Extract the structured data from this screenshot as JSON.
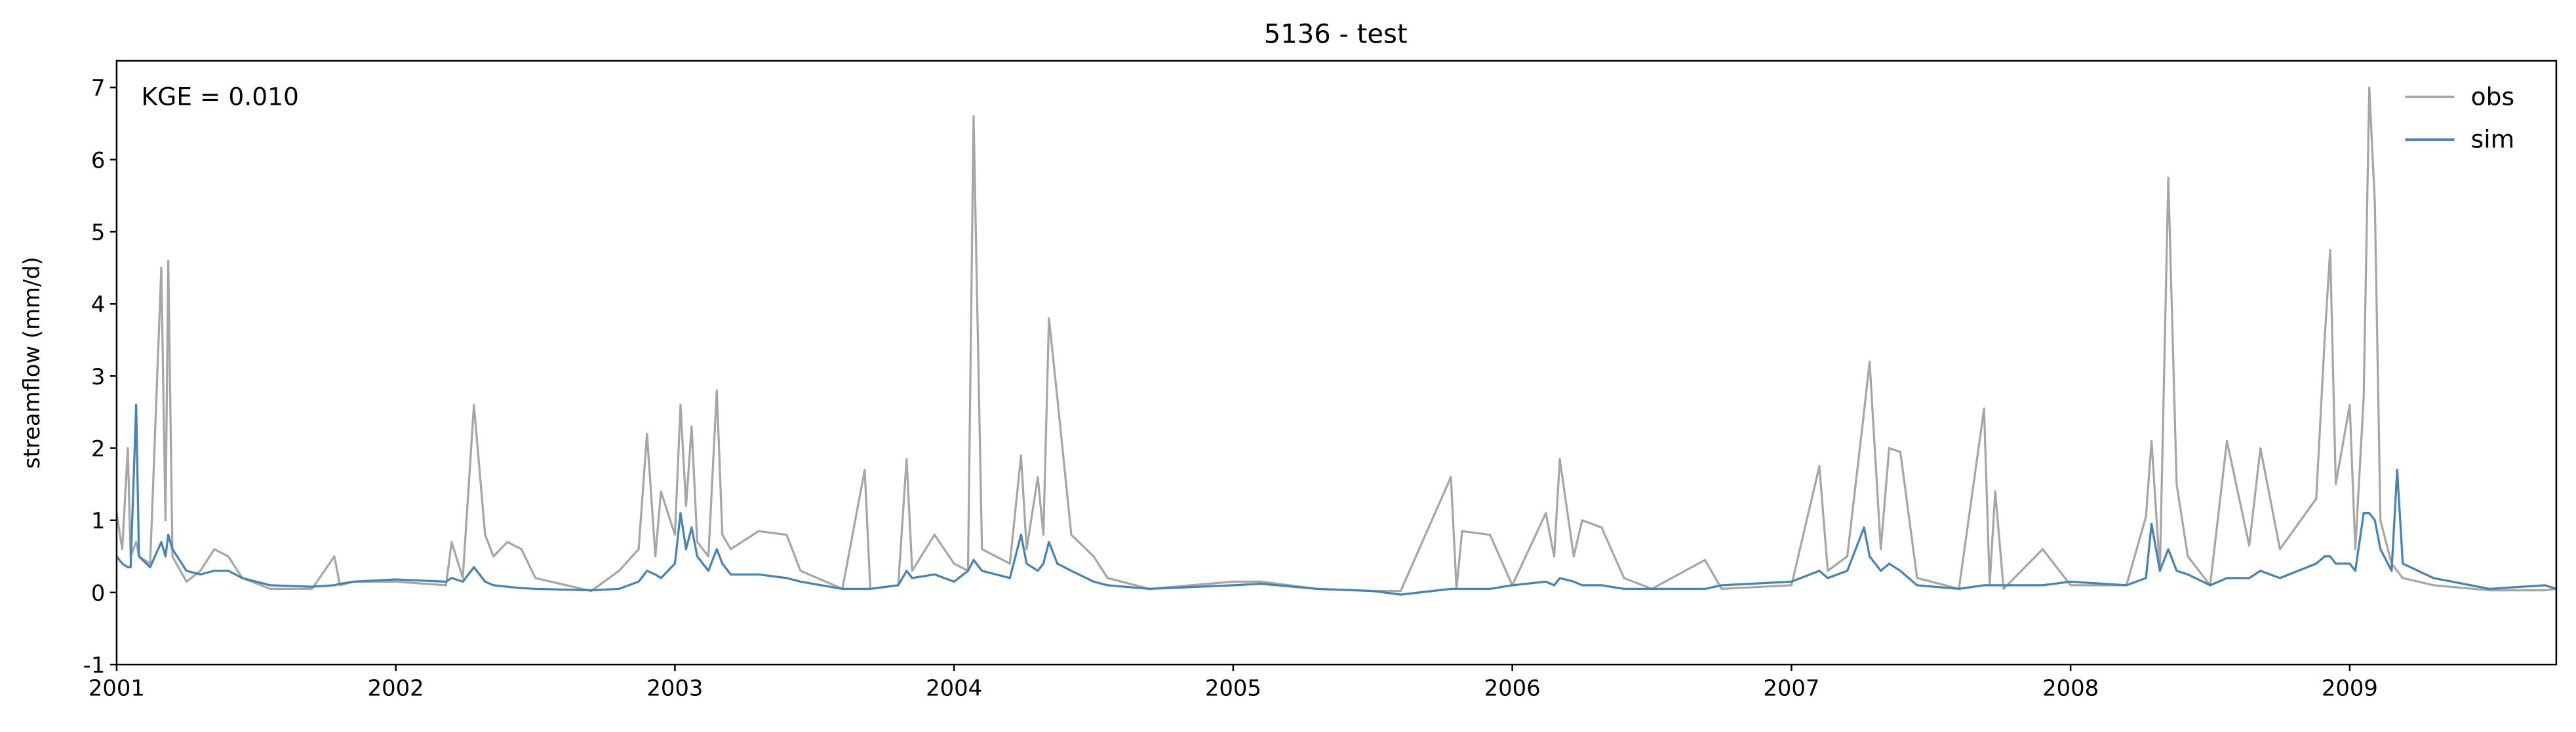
{
  "chart_data": {
    "type": "line",
    "title": "5136 - test",
    "ylabel": "streamflow (mm/d)",
    "annotation": "KGE = 0.010",
    "legend": "upper right",
    "xlim": [
      2001,
      2009.74
    ],
    "xticks": [
      2001,
      2002,
      2003,
      2004,
      2005,
      2006,
      2007,
      2008,
      2009
    ],
    "ylim": [
      -1,
      7.37
    ],
    "yticks": [
      -1,
      0,
      1,
      2,
      3,
      4,
      5,
      6,
      7
    ],
    "x": [
      2001.0,
      2001.02,
      2001.04,
      2001.05,
      2001.07,
      2001.08,
      2001.12,
      2001.16,
      2001.175,
      2001.185,
      2001.2,
      2001.25,
      2001.3,
      2001.35,
      2001.4,
      2001.45,
      2001.55,
      2001.7,
      2001.78,
      2001.8,
      2001.85,
      2002.0,
      2002.18,
      2002.2,
      2002.24,
      2002.28,
      2002.32,
      2002.35,
      2002.4,
      2002.45,
      2002.5,
      2002.7,
      2002.8,
      2002.87,
      2002.9,
      2002.93,
      2002.95,
      2003.0,
      2003.02,
      2003.04,
      2003.06,
      2003.08,
      2003.12,
      2003.15,
      2003.17,
      2003.2,
      2003.3,
      2003.4,
      2003.45,
      2003.6,
      2003.68,
      2003.7,
      2003.8,
      2003.83,
      2003.85,
      2003.93,
      2004.0,
      2004.05,
      2004.07,
      2004.1,
      2004.2,
      2004.24,
      2004.26,
      2004.3,
      2004.32,
      2004.34,
      2004.37,
      2004.42,
      2004.5,
      2004.55,
      2004.7,
      2005.0,
      2005.1,
      2005.3,
      2005.5,
      2005.6,
      2005.78,
      2005.8,
      2005.82,
      2005.92,
      2006.0,
      2006.12,
      2006.15,
      2006.17,
      2006.22,
      2006.25,
      2006.32,
      2006.4,
      2006.5,
      2006.69,
      2006.75,
      2007.0,
      2007.1,
      2007.13,
      2007.2,
      2007.26,
      2007.28,
      2007.32,
      2007.35,
      2007.39,
      2007.45,
      2007.6,
      2007.69,
      2007.71,
      2007.73,
      2007.76,
      2007.9,
      2008.0,
      2008.2,
      2008.27,
      2008.29,
      2008.32,
      2008.35,
      2008.38,
      2008.42,
      2008.5,
      2008.56,
      2008.64,
      2008.68,
      2008.75,
      2008.88,
      2008.91,
      2008.93,
      2008.95,
      2009.0,
      2009.02,
      2009.05,
      2009.07,
      2009.09,
      2009.11,
      2009.15,
      2009.17,
      2009.19,
      2009.3,
      2009.5,
      2009.7,
      2009.74
    ],
    "series": [
      {
        "name": "obs",
        "color": "#a6a6a6",
        "values": [
          1.1,
          0.6,
          2.0,
          0.5,
          0.7,
          0.5,
          0.4,
          4.5,
          1.0,
          4.6,
          0.5,
          0.15,
          0.3,
          0.6,
          0.5,
          0.2,
          0.05,
          0.05,
          0.5,
          0.1,
          0.15,
          0.15,
          0.1,
          0.7,
          0.2,
          2.6,
          0.8,
          0.5,
          0.7,
          0.6,
          0.2,
          0.02,
          0.3,
          0.6,
          2.2,
          0.5,
          1.4,
          0.8,
          2.6,
          1.2,
          2.3,
          0.7,
          0.5,
          2.8,
          0.8,
          0.6,
          0.85,
          0.8,
          0.3,
          0.05,
          1.7,
          0.05,
          0.1,
          1.85,
          0.3,
          0.8,
          0.4,
          0.3,
          6.6,
          0.6,
          0.4,
          1.9,
          0.6,
          1.6,
          0.8,
          3.8,
          2.7,
          0.8,
          0.5,
          0.2,
          0.05,
          0.15,
          0.15,
          0.05,
          0.02,
          0.02,
          1.6,
          0.05,
          0.85,
          0.8,
          0.1,
          1.1,
          0.5,
          1.85,
          0.5,
          1.0,
          0.9,
          0.2,
          0.05,
          0.45,
          0.05,
          0.1,
          1.75,
          0.3,
          0.5,
          2.5,
          3.2,
          0.6,
          2.0,
          1.95,
          0.2,
          0.05,
          2.55,
          0.1,
          1.4,
          0.05,
          0.6,
          0.1,
          0.1,
          1.05,
          2.1,
          0.3,
          5.75,
          1.5,
          0.5,
          0.1,
          2.1,
          0.65,
          2.0,
          0.6,
          1.3,
          3.5,
          4.75,
          1.5,
          2.6,
          0.6,
          2.7,
          7.0,
          5.4,
          1.0,
          0.4,
          0.3,
          0.2,
          0.1,
          0.03,
          0.03,
          0.05
        ]
      },
      {
        "name": "sim",
        "color": "#4682b4",
        "values": [
          0.5,
          0.4,
          0.35,
          0.35,
          2.6,
          0.5,
          0.35,
          0.7,
          0.5,
          0.8,
          0.6,
          0.3,
          0.25,
          0.3,
          0.3,
          0.2,
          0.1,
          0.08,
          0.1,
          0.12,
          0.15,
          0.18,
          0.15,
          0.2,
          0.15,
          0.35,
          0.15,
          0.1,
          0.08,
          0.06,
          0.05,
          0.03,
          0.05,
          0.15,
          0.3,
          0.25,
          0.2,
          0.4,
          1.1,
          0.6,
          0.9,
          0.5,
          0.3,
          0.6,
          0.4,
          0.25,
          0.25,
          0.2,
          0.15,
          0.05,
          0.05,
          0.05,
          0.1,
          0.3,
          0.2,
          0.25,
          0.15,
          0.3,
          0.45,
          0.3,
          0.2,
          0.8,
          0.4,
          0.3,
          0.4,
          0.7,
          0.4,
          0.3,
          0.15,
          0.1,
          0.05,
          0.1,
          0.12,
          0.05,
          0.02,
          -0.03,
          0.05,
          0.05,
          0.05,
          0.05,
          0.1,
          0.15,
          0.1,
          0.2,
          0.15,
          0.1,
          0.1,
          0.05,
          0.05,
          0.05,
          0.1,
          0.15,
          0.3,
          0.2,
          0.3,
          0.9,
          0.5,
          0.3,
          0.4,
          0.3,
          0.1,
          0.05,
          0.1,
          0.1,
          0.1,
          0.1,
          0.1,
          0.15,
          0.1,
          0.2,
          0.95,
          0.3,
          0.6,
          0.3,
          0.25,
          0.1,
          0.2,
          0.2,
          0.3,
          0.2,
          0.4,
          0.5,
          0.5,
          0.4,
          0.4,
          0.3,
          1.1,
          1.1,
          1.0,
          0.6,
          0.3,
          1.7,
          0.4,
          0.2,
          0.05,
          0.1,
          0.05
        ]
      }
    ]
  }
}
